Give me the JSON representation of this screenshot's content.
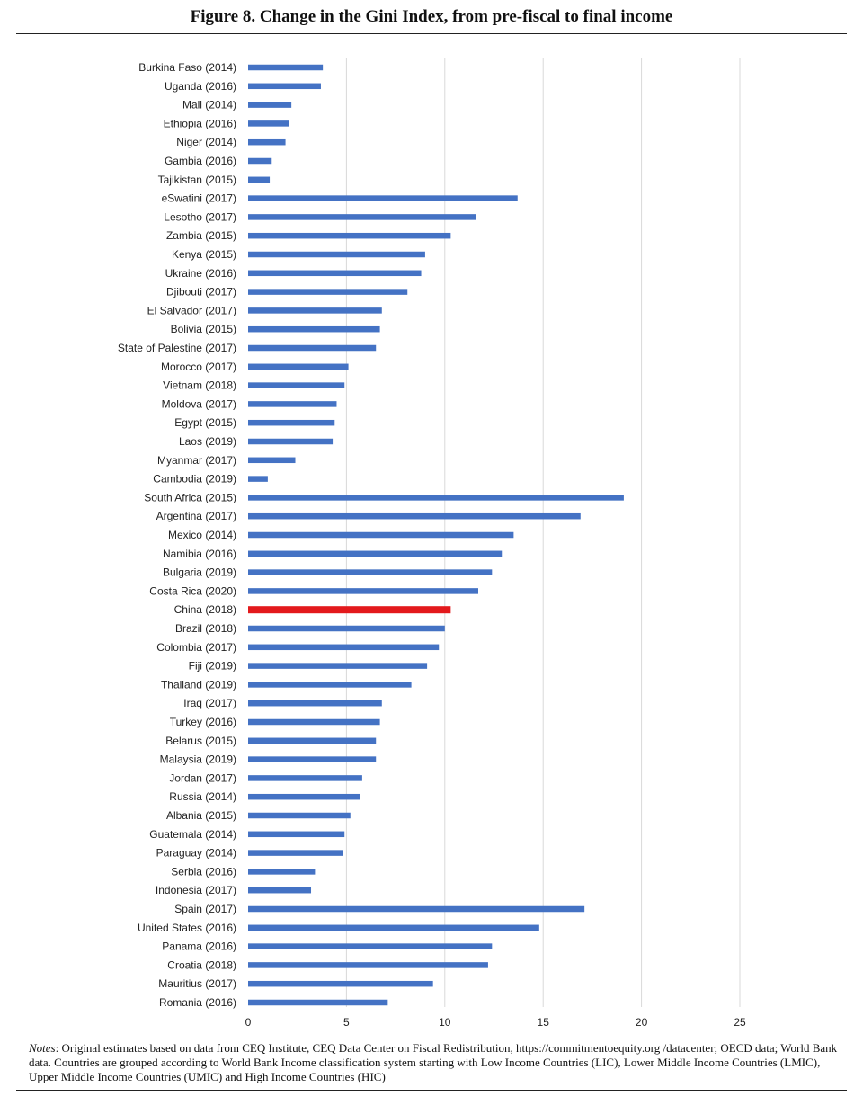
{
  "title": "Figure 8. Change in the Gini Index, from pre-fiscal to final income",
  "notes": {
    "label": "Notes",
    "text": ": Original estimates based on data from CEQ Institute, CEQ Data Center on Fiscal Redistribution, https://commitmentoequity.org /datacenter; OECD data; World Bank data. Countries are grouped according to World Bank Income classification system starting with Low Income Countries (LIC), Lower Middle Income Countries (LMIC), Upper Middle Income Countries (UMIC) and High Income Countries (HIC)"
  },
  "chart_data": {
    "type": "bar",
    "orientation": "horizontal",
    "title": "Figure 8. Change in the Gini Index, from pre-fiscal to final income",
    "xlabel": "",
    "ylabel": "",
    "xlim": [
      0,
      25
    ],
    "xticks": [
      0,
      5,
      10,
      15,
      20,
      25
    ],
    "grid": true,
    "bar_color": "#4472C4",
    "highlight_color": "#E3191C",
    "highlight_category": "China (2018)",
    "categories": [
      "Burkina Faso (2014)",
      "Uganda (2016)",
      "Mali (2014)",
      "Ethiopia (2016)",
      "Niger (2014)",
      "Gambia (2016)",
      "Tajikistan (2015)",
      "eSwatini (2017)",
      "Lesotho (2017)",
      "Zambia (2015)",
      "Kenya (2015)",
      "Ukraine (2016)",
      "Djibouti (2017)",
      "El Salvador (2017)",
      "Bolivia (2015)",
      "State of Palestine (2017)",
      "Morocco (2017)",
      "Vietnam (2018)",
      "Moldova (2017)",
      "Egypt (2015)",
      "Laos (2019)",
      "Myanmar (2017)",
      "Cambodia (2019)",
      "South Africa (2015)",
      "Argentina (2017)",
      "Mexico (2014)",
      "Namibia (2016)",
      "Bulgaria (2019)",
      "Costa Rica (2020)",
      "China (2018)",
      "Brazil (2018)",
      "Colombia (2017)",
      "Fiji (2019)",
      "Thailand (2019)",
      "Iraq (2017)",
      "Turkey (2016)",
      "Belarus (2015)",
      "Malaysia (2019)",
      "Jordan (2017)",
      "Russia (2014)",
      "Albania (2015)",
      "Guatemala (2014)",
      "Paraguay (2014)",
      "Serbia (2016)",
      "Indonesia (2017)",
      "Spain (2017)",
      "United States (2016)",
      "Panama (2016)",
      "Croatia (2018)",
      "Mauritius (2017)",
      "Romania (2016)"
    ],
    "values": [
      3.8,
      3.7,
      2.2,
      2.1,
      1.9,
      1.2,
      1.1,
      13.7,
      11.6,
      10.3,
      9.0,
      8.8,
      8.1,
      6.8,
      6.7,
      6.5,
      5.1,
      4.9,
      4.5,
      4.4,
      4.3,
      2.4,
      1.0,
      19.1,
      16.9,
      13.5,
      12.9,
      12.4,
      11.7,
      10.3,
      10.0,
      9.7,
      9.1,
      8.3,
      6.8,
      6.7,
      6.5,
      6.5,
      5.8,
      5.7,
      5.2,
      4.9,
      4.8,
      3.4,
      3.2,
      17.1,
      14.8,
      12.4,
      12.2,
      9.4,
      7.1
    ]
  }
}
